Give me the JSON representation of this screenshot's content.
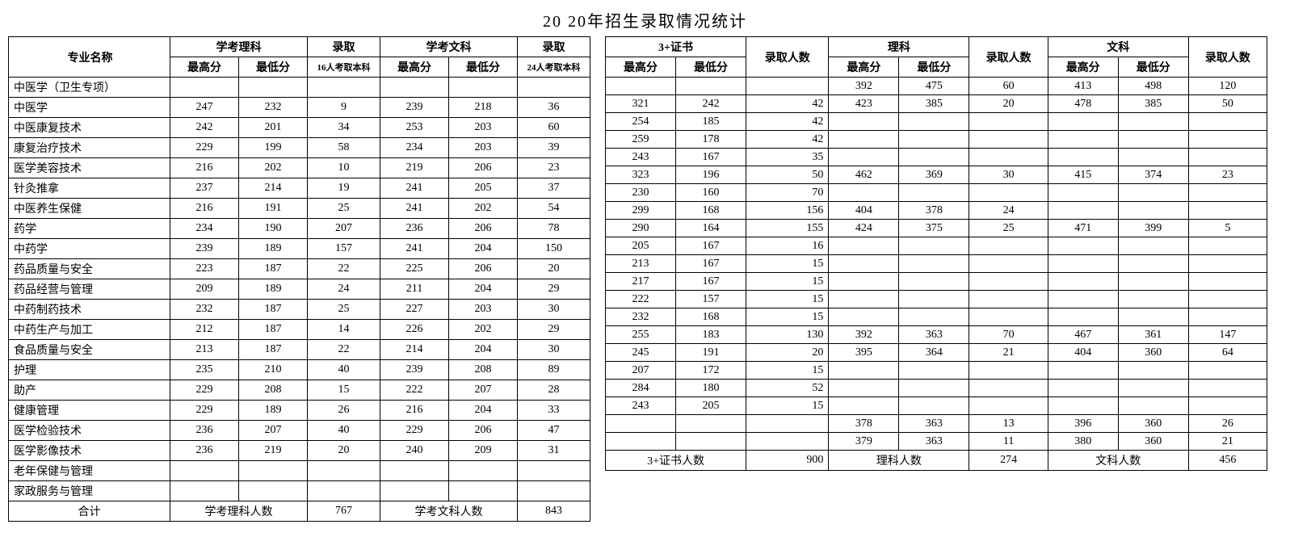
{
  "title": "20  20年招生录取情况统计",
  "left": {
    "headers": {
      "major": "专业名称",
      "group1": "学考理科",
      "admit1": "录取",
      "group2": "学考文科",
      "admit2": "录取",
      "high": "最高分",
      "low": "最低分",
      "sub1": "16人考取本科",
      "sub2": "24人考取本科"
    },
    "rows": [
      {
        "m": "中医学（卫生专项）",
        "a": "",
        "b": "",
        "c": "",
        "d": "",
        "e": "",
        "f": ""
      },
      {
        "m": "中医学",
        "a": "247",
        "b": "232",
        "c": "9",
        "d": "239",
        "e": "218",
        "f": "36"
      },
      {
        "m": "中医康复技术",
        "a": "242",
        "b": "201",
        "c": "34",
        "d": "253",
        "e": "203",
        "f": "60"
      },
      {
        "m": "康复治疗技术",
        "a": "229",
        "b": "199",
        "c": "58",
        "d": "234",
        "e": "203",
        "f": "39"
      },
      {
        "m": "医学美容技术",
        "a": "216",
        "b": "202",
        "c": "10",
        "d": "219",
        "e": "206",
        "f": "23"
      },
      {
        "m": "针灸推拿",
        "a": "237",
        "b": "214",
        "c": "19",
        "d": "241",
        "e": "205",
        "f": "37"
      },
      {
        "m": "中医养生保健",
        "a": "216",
        "b": "191",
        "c": "25",
        "d": "241",
        "e": "202",
        "f": "54"
      },
      {
        "m": "药学",
        "a": "234",
        "b": "190",
        "c": "207",
        "d": "236",
        "e": "206",
        "f": "78"
      },
      {
        "m": "中药学",
        "a": "239",
        "b": "189",
        "c": "157",
        "d": "241",
        "e": "204",
        "f": "150"
      },
      {
        "m": "药品质量与安全",
        "a": "223",
        "b": "187",
        "c": "22",
        "d": "225",
        "e": "206",
        "f": "20"
      },
      {
        "m": "药品经营与管理",
        "a": "209",
        "b": "189",
        "c": "24",
        "d": "211",
        "e": "204",
        "f": "29"
      },
      {
        "m": "中药制药技术",
        "a": "232",
        "b": "187",
        "c": "25",
        "d": "227",
        "e": "203",
        "f": "30"
      },
      {
        "m": "中药生产与加工",
        "a": "212",
        "b": "187",
        "c": "14",
        "d": "226",
        "e": "202",
        "f": "29"
      },
      {
        "m": "食品质量与安全",
        "a": "213",
        "b": "187",
        "c": "22",
        "d": "214",
        "e": "204",
        "f": "30"
      },
      {
        "m": "护理",
        "a": "235",
        "b": "210",
        "c": "40",
        "d": "239",
        "e": "208",
        "f": "89"
      },
      {
        "m": "助产",
        "a": "229",
        "b": "208",
        "c": "15",
        "d": "222",
        "e": "207",
        "f": "28"
      },
      {
        "m": "健康管理",
        "a": "229",
        "b": "189",
        "c": "26",
        "d": "216",
        "e": "204",
        "f": "33"
      },
      {
        "m": "医学检验技术",
        "a": "236",
        "b": "207",
        "c": "40",
        "d": "229",
        "e": "206",
        "f": "47"
      },
      {
        "m": "医学影像技术",
        "a": "236",
        "b": "219",
        "c": "20",
        "d": "240",
        "e": "209",
        "f": "31"
      },
      {
        "m": "老年保健与管理",
        "a": "",
        "b": "",
        "c": "",
        "d": "",
        "e": "",
        "f": ""
      },
      {
        "m": "家政服务与管理",
        "a": "",
        "b": "",
        "c": "",
        "d": "",
        "e": "",
        "f": ""
      }
    ],
    "footer": {
      "label": "合计",
      "g1": "学考理科人数",
      "v1": "767",
      "g2": "学考文科人数",
      "v2": "843"
    }
  },
  "right": {
    "headers": {
      "group1": "3+证书",
      "admit1": "录取人数",
      "group2": "理科",
      "admit2": "录取人数",
      "group3": "文科",
      "admit3": "录取人数",
      "high": "最高分",
      "low": "最低分"
    },
    "rows": [
      {
        "a": "",
        "b": "",
        "c": "",
        "d": "392",
        "e": "475",
        "f": "60",
        "g": "413",
        "h": "498",
        "i": "120"
      },
      {
        "a": "321",
        "b": "242",
        "c": "42",
        "d": "423",
        "e": "385",
        "f": "20",
        "g": "478",
        "h": "385",
        "i": "50"
      },
      {
        "a": "254",
        "b": "185",
        "c": "42",
        "d": "",
        "e": "",
        "f": "",
        "g": "",
        "h": "",
        "i": ""
      },
      {
        "a": "259",
        "b": "178",
        "c": "42",
        "d": "",
        "e": "",
        "f": "",
        "g": "",
        "h": "",
        "i": ""
      },
      {
        "a": "243",
        "b": "167",
        "c": "35",
        "d": "",
        "e": "",
        "f": "",
        "g": "",
        "h": "",
        "i": ""
      },
      {
        "a": "323",
        "b": "196",
        "c": "50",
        "d": "462",
        "e": "369",
        "f": "30",
        "g": "415",
        "h": "374",
        "i": "23"
      },
      {
        "a": "230",
        "b": "160",
        "c": "70",
        "d": "",
        "e": "",
        "f": "",
        "g": "",
        "h": "",
        "i": ""
      },
      {
        "a": "299",
        "b": "168",
        "c": "156",
        "d": "404",
        "e": "378",
        "f": "24",
        "g": "",
        "h": "",
        "i": ""
      },
      {
        "a": "290",
        "b": "164",
        "c": "155",
        "d": "424",
        "e": "375",
        "f": "25",
        "g": "471",
        "h": "399",
        "i": "5"
      },
      {
        "a": "205",
        "b": "167",
        "c": "16",
        "d": "",
        "e": "",
        "f": "",
        "g": "",
        "h": "",
        "i": ""
      },
      {
        "a": "213",
        "b": "167",
        "c": "15",
        "d": "",
        "e": "",
        "f": "",
        "g": "",
        "h": "",
        "i": ""
      },
      {
        "a": "217",
        "b": "167",
        "c": "15",
        "d": "",
        "e": "",
        "f": "",
        "g": "",
        "h": "",
        "i": ""
      },
      {
        "a": "222",
        "b": "157",
        "c": "15",
        "d": "",
        "e": "",
        "f": "",
        "g": "",
        "h": "",
        "i": ""
      },
      {
        "a": "232",
        "b": "168",
        "c": "15",
        "d": "",
        "e": "",
        "f": "",
        "g": "",
        "h": "",
        "i": ""
      },
      {
        "a": "255",
        "b": "183",
        "c": "130",
        "d": "392",
        "e": "363",
        "f": "70",
        "g": "467",
        "h": "361",
        "i": "147"
      },
      {
        "a": "245",
        "b": "191",
        "c": "20",
        "d": "395",
        "e": "364",
        "f": "21",
        "g": "404",
        "h": "360",
        "i": "64"
      },
      {
        "a": "207",
        "b": "172",
        "c": "15",
        "d": "",
        "e": "",
        "f": "",
        "g": "",
        "h": "",
        "i": ""
      },
      {
        "a": "284",
        "b": "180",
        "c": "52",
        "d": "",
        "e": "",
        "f": "",
        "g": "",
        "h": "",
        "i": ""
      },
      {
        "a": "243",
        "b": "205",
        "c": "15",
        "d": "",
        "e": "",
        "f": "",
        "g": "",
        "h": "",
        "i": ""
      },
      {
        "a": "",
        "b": "",
        "c": "",
        "d": "378",
        "e": "363",
        "f": "13",
        "g": "396",
        "h": "360",
        "i": "26"
      },
      {
        "a": "",
        "b": "",
        "c": "",
        "d": "379",
        "e": "363",
        "f": "11",
        "g": "380",
        "h": "360",
        "i": "21"
      }
    ],
    "footer": {
      "g1": "3+证书人数",
      "v1": "900",
      "g2": "理科人数",
      "v2": "274",
      "g3": "文科人数",
      "v3": "456"
    }
  }
}
